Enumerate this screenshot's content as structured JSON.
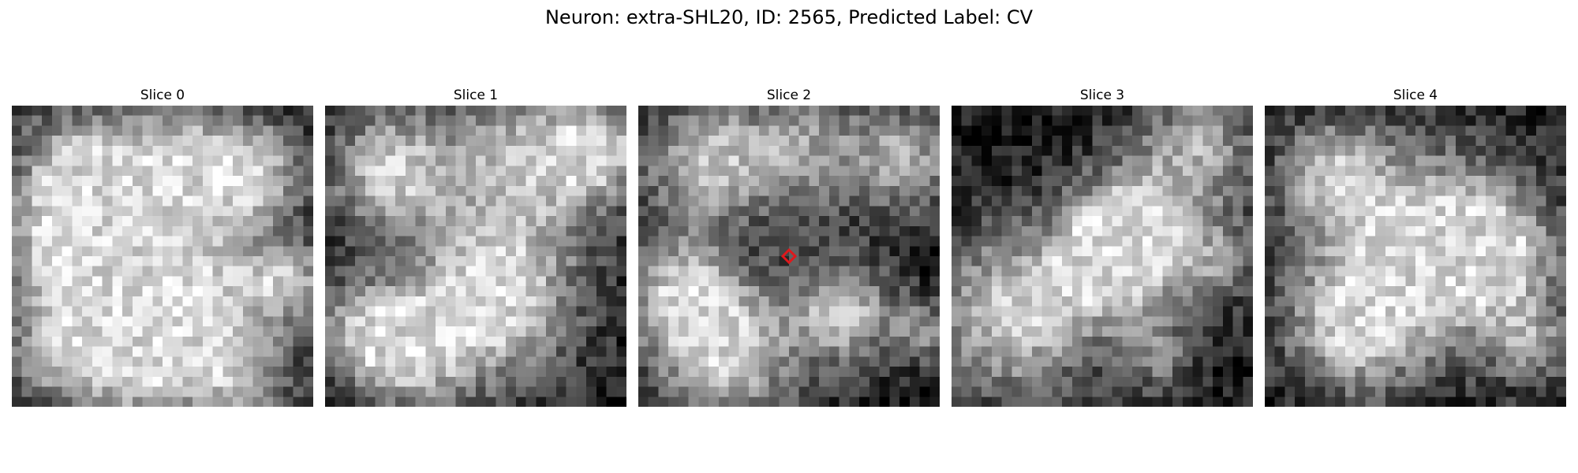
{
  "figure": {
    "title": "Neuron: extra-SHL20, ID: 2565, Predicted Label: CV"
  },
  "panels": [
    {
      "title": "Slice 0",
      "seed": 11,
      "marker": false
    },
    {
      "title": "Slice 1",
      "seed": 23,
      "marker": false
    },
    {
      "title": "Slice 2",
      "seed": 37,
      "marker": true
    },
    {
      "title": "Slice 3",
      "seed": 51,
      "marker": false
    },
    {
      "title": "Slice 4",
      "seed": 67,
      "marker": false
    }
  ],
  "style": {
    "colormap": "grayscale",
    "marker_color": "#e0181c",
    "marker_shape": "diamond"
  }
}
